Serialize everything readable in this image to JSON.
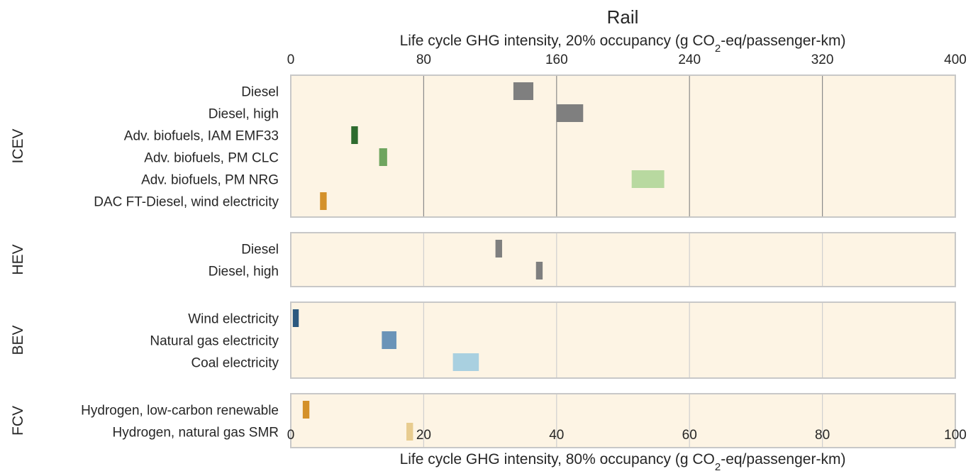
{
  "chart_data": {
    "type": "bar",
    "title": "Rail",
    "top_axis": {
      "label_prefix": "Life cycle GHG intensity, 20% occupancy (g CO",
      "label_sub": "2",
      "label_suffix": "-eq/passenger-km)",
      "range": [
        0,
        400
      ],
      "ticks": [
        "0",
        "80",
        "160",
        "240",
        "320",
        "400"
      ]
    },
    "bottom_axis": {
      "label_prefix": "Life cycle GHG intensity, 80% occupancy (g CO",
      "label_sub": "2",
      "label_suffix": "-eq/passenger-km)",
      "range": [
        0,
        100
      ],
      "ticks": [
        "0",
        "20",
        "40",
        "60",
        "80",
        "100"
      ]
    },
    "grid": true,
    "background": "#fdf4e4",
    "groups": [
      {
        "name": "ICEV",
        "items": [
          {
            "label": "Diesel",
            "low": 33.5,
            "high": 36.5,
            "color": "#7f7f7f"
          },
          {
            "label": "Diesel, high",
            "low": 40.0,
            "high": 44.0,
            "color": "#7f7f7f"
          },
          {
            "label": "Adv. biofuels, IAM EMF33",
            "low": 9.1,
            "high": 10.1,
            "color": "#2e6b2e"
          },
          {
            "label": "Adv. biofuels, PM CLC",
            "low": 13.3,
            "high": 14.5,
            "color": "#6fa55f"
          },
          {
            "label": "Adv. biofuels, PM NRG",
            "low": 51.3,
            "high": 56.2,
            "color": "#b8d9a0"
          },
          {
            "label": "DAC FT-Diesel, wind electricity",
            "low": 4.4,
            "high": 5.4,
            "color": "#d4912a"
          }
        ]
      },
      {
        "name": "HEV",
        "items": [
          {
            "label": "Diesel",
            "low": 30.8,
            "high": 31.8,
            "color": "#7f7f7f"
          },
          {
            "label": "Diesel, high",
            "low": 36.9,
            "high": 37.9,
            "color": "#7f7f7f"
          }
        ]
      },
      {
        "name": "BEV",
        "items": [
          {
            "label": "Wind electricity",
            "low": 0.3,
            "high": 1.2,
            "color": "#2b587f"
          },
          {
            "label": "Natural gas electricity",
            "low": 13.7,
            "high": 15.9,
            "color": "#6a94b8"
          },
          {
            "label": "Coal electricity",
            "low": 24.4,
            "high": 28.3,
            "color": "#a9d0e0"
          }
        ]
      },
      {
        "name": "FCV",
        "items": [
          {
            "label": "Hydrogen, low-carbon renewable",
            "low": 1.8,
            "high": 2.8,
            "color": "#d4912a"
          },
          {
            "label": "Hydrogen, natural gas SMR",
            "low": 17.4,
            "high": 18.4,
            "color": "#e8cc8f"
          }
        ]
      }
    ]
  }
}
